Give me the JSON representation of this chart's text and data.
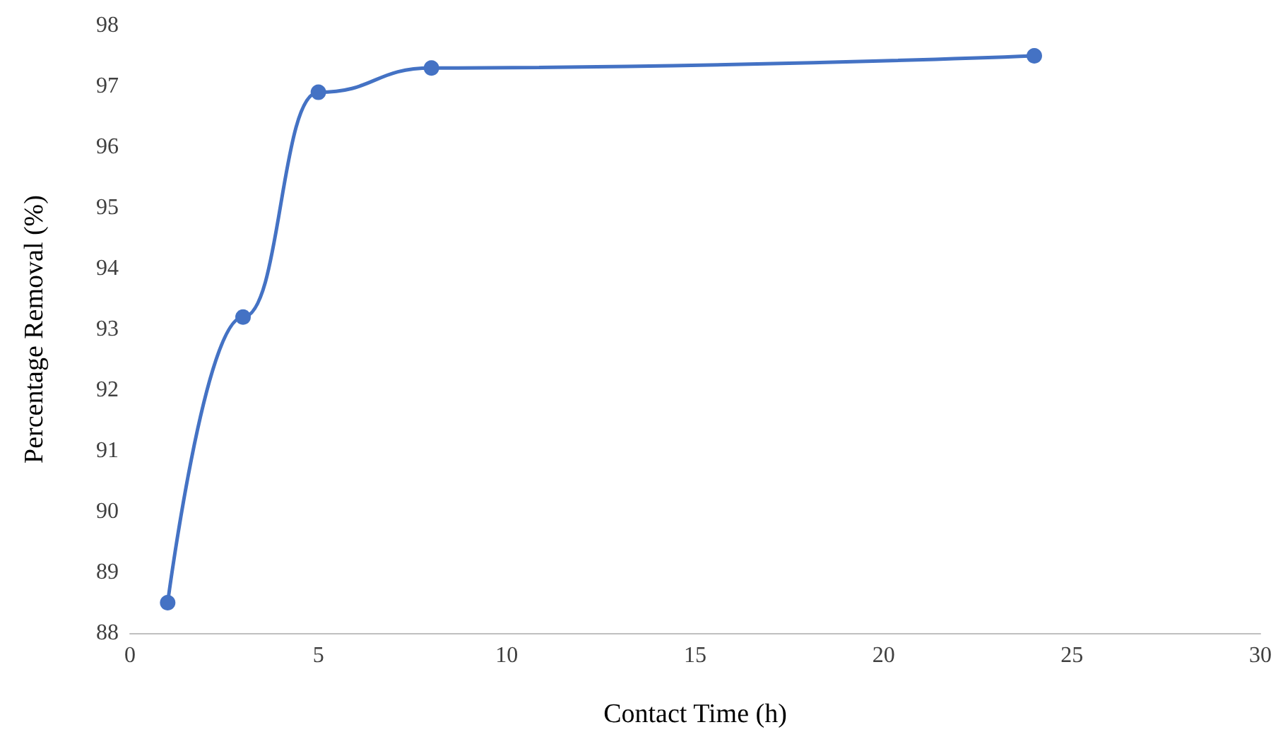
{
  "chart_data": {
    "type": "line",
    "xlabel": "Contact Time (h)",
    "ylabel": "Percentage Removal (%)",
    "x": [
      1,
      3,
      5,
      8,
      24
    ],
    "series": [
      {
        "color": "#4472c4",
        "values": [
          88.5,
          93.2,
          96.9,
          97.3,
          97.5
        ]
      }
    ],
    "xlim": [
      0,
      30
    ],
    "xticks": [
      0,
      5,
      10,
      15,
      20,
      25,
      30
    ],
    "ylim": [
      88,
      98
    ],
    "yticks": [
      88,
      89,
      90,
      91,
      92,
      93,
      94,
      95,
      96,
      97,
      98
    ],
    "grid": false,
    "marker": "circle",
    "line_style": "solid"
  }
}
